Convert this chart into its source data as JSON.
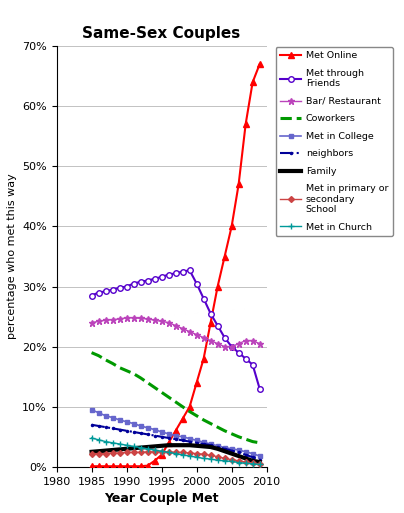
{
  "title": "Same-Sex Couples",
  "xlabel": "Year Couple Met",
  "ylabel": "percentage who met this way",
  "xlim": [
    1980,
    2010
  ],
  "ylim": [
    0,
    0.7
  ],
  "yticks": [
    0.0,
    0.1,
    0.2,
    0.3,
    0.4,
    0.5,
    0.6,
    0.7
  ],
  "ytick_labels": [
    "0%",
    "10%",
    "20%",
    "30%",
    "40%",
    "50%",
    "60%",
    "70%"
  ],
  "xticks": [
    1980,
    1985,
    1990,
    1995,
    2000,
    2005,
    2010
  ],
  "series": {
    "met_online": {
      "label": "Met Online",
      "color": "#ff0000",
      "marker": "^",
      "linestyle": "-",
      "markersize": 5,
      "markerfacecolor": "#ff0000",
      "linewidth": 1.5,
      "years": [
        1985,
        1986,
        1987,
        1988,
        1989,
        1990,
        1991,
        1992,
        1993,
        1994,
        1995,
        1996,
        1997,
        1998,
        1999,
        2000,
        2001,
        2002,
        2003,
        2004,
        2005,
        2006,
        2007,
        2008,
        2009
      ],
      "values": [
        0.001,
        0.001,
        0.001,
        0.001,
        0.001,
        0.001,
        0.001,
        0.001,
        0.002,
        0.01,
        0.02,
        0.04,
        0.06,
        0.08,
        0.1,
        0.14,
        0.18,
        0.24,
        0.3,
        0.35,
        0.4,
        0.47,
        0.57,
        0.64,
        0.67
      ]
    },
    "met_friends": {
      "label": "Met through\nFriends",
      "color": "#5500cc",
      "marker": "o",
      "linestyle": "-",
      "markersize": 4,
      "markerfacecolor": "white",
      "markeredgecolor": "#5500cc",
      "linewidth": 1.5,
      "years": [
        1985,
        1986,
        1987,
        1988,
        1989,
        1990,
        1991,
        1992,
        1993,
        1994,
        1995,
        1996,
        1997,
        1998,
        1999,
        2000,
        2001,
        2002,
        2003,
        2004,
        2005,
        2006,
        2007,
        2008,
        2009
      ],
      "values": [
        0.285,
        0.29,
        0.292,
        0.295,
        0.298,
        0.3,
        0.305,
        0.308,
        0.31,
        0.313,
        0.316,
        0.32,
        0.322,
        0.325,
        0.327,
        0.305,
        0.28,
        0.255,
        0.235,
        0.215,
        0.2,
        0.19,
        0.18,
        0.17,
        0.13
      ]
    },
    "bar_restaurant": {
      "label": "Bar/ Restaurant",
      "color": "#bb44bb",
      "marker": "*",
      "linestyle": "-",
      "markersize": 5,
      "markerfacecolor": "#bb44bb",
      "linewidth": 1.0,
      "years": [
        1985,
        1986,
        1987,
        1988,
        1989,
        1990,
        1991,
        1992,
        1993,
        1994,
        1995,
        1996,
        1997,
        1998,
        1999,
        2000,
        2001,
        2002,
        2003,
        2004,
        2005,
        2006,
        2007,
        2008,
        2009
      ],
      "values": [
        0.24,
        0.242,
        0.244,
        0.245,
        0.246,
        0.248,
        0.248,
        0.247,
        0.246,
        0.244,
        0.242,
        0.24,
        0.235,
        0.23,
        0.225,
        0.22,
        0.215,
        0.21,
        0.205,
        0.2,
        0.2,
        0.205,
        0.21,
        0.21,
        0.205
      ]
    },
    "coworkers": {
      "label": "Coworkers",
      "color": "#009900",
      "marker": "",
      "linestyle": "--",
      "markersize": 0,
      "linewidth": 2.2,
      "years": [
        1985,
        1986,
        1987,
        1988,
        1989,
        1990,
        1991,
        1992,
        1993,
        1994,
        1995,
        1996,
        1997,
        1998,
        1999,
        2000,
        2001,
        2002,
        2003,
        2004,
        2005,
        2006,
        2007,
        2008,
        2009
      ],
      "values": [
        0.19,
        0.185,
        0.178,
        0.172,
        0.165,
        0.16,
        0.155,
        0.148,
        0.14,
        0.132,
        0.124,
        0.116,
        0.108,
        0.1,
        0.092,
        0.085,
        0.078,
        0.072,
        0.066,
        0.06,
        0.055,
        0.05,
        0.046,
        0.042,
        0.04
      ]
    },
    "met_college": {
      "label": "Met in College",
      "color": "#6666cc",
      "marker": "s",
      "linestyle": "-",
      "markersize": 3,
      "markerfacecolor": "#6666cc",
      "linewidth": 1.2,
      "years": [
        1985,
        1986,
        1987,
        1988,
        1989,
        1990,
        1991,
        1992,
        1993,
        1994,
        1995,
        1996,
        1997,
        1998,
        1999,
        2000,
        2001,
        2002,
        2003,
        2004,
        2005,
        2006,
        2007,
        2008,
        2009
      ],
      "values": [
        0.095,
        0.09,
        0.085,
        0.082,
        0.078,
        0.075,
        0.072,
        0.068,
        0.065,
        0.062,
        0.058,
        0.055,
        0.052,
        0.05,
        0.047,
        0.044,
        0.041,
        0.038,
        0.035,
        0.032,
        0.03,
        0.028,
        0.025,
        0.022,
        0.018
      ]
    },
    "neighbors": {
      "label": "neighbors",
      "color": "#000099",
      "marker": ".",
      "linestyle": "-.",
      "markersize": 3,
      "markerfacecolor": "#000099",
      "linewidth": 1.5,
      "years": [
        1985,
        1986,
        1987,
        1988,
        1989,
        1990,
        1991,
        1992,
        1993,
        1994,
        1995,
        1996,
        1997,
        1998,
        1999,
        2000,
        2001,
        2002,
        2003,
        2004,
        2005,
        2006,
        2007,
        2008,
        2009
      ],
      "values": [
        0.07,
        0.068,
        0.066,
        0.064,
        0.062,
        0.06,
        0.058,
        0.056,
        0.054,
        0.052,
        0.05,
        0.048,
        0.046,
        0.044,
        0.042,
        0.04,
        0.038,
        0.036,
        0.033,
        0.03,
        0.027,
        0.024,
        0.02,
        0.016,
        0.012
      ]
    },
    "family": {
      "label": "Family",
      "color": "#000000",
      "marker": "",
      "linestyle": "-",
      "markersize": 0,
      "linewidth": 3.0,
      "years": [
        1985,
        1986,
        1987,
        1988,
        1989,
        1990,
        1991,
        1992,
        1993,
        1994,
        1995,
        1996,
        1997,
        1998,
        1999,
        2000,
        2001,
        2002,
        2003,
        2004,
        2005,
        2006,
        2007,
        2008,
        2009
      ],
      "values": [
        0.025,
        0.026,
        0.027,
        0.028,
        0.029,
        0.03,
        0.031,
        0.032,
        0.033,
        0.034,
        0.035,
        0.036,
        0.036,
        0.036,
        0.036,
        0.035,
        0.034,
        0.033,
        0.03,
        0.026,
        0.022,
        0.018,
        0.014,
        0.01,
        0.008
      ]
    },
    "primary_school": {
      "label": "Met in primary or\nsecondary\nSchool",
      "color": "#cc4444",
      "marker": "D",
      "linestyle": "-",
      "markersize": 3,
      "markerfacecolor": "#cc4444",
      "linewidth": 1.0,
      "years": [
        1985,
        1986,
        1987,
        1988,
        1989,
        1990,
        1991,
        1992,
        1993,
        1994,
        1995,
        1996,
        1997,
        1998,
        1999,
        2000,
        2001,
        2002,
        2003,
        2004,
        2005,
        2006,
        2007,
        2008,
        2009
      ],
      "values": [
        0.022,
        0.022,
        0.022,
        0.023,
        0.023,
        0.024,
        0.024,
        0.024,
        0.025,
        0.025,
        0.025,
        0.025,
        0.024,
        0.024,
        0.023,
        0.022,
        0.021,
        0.019,
        0.017,
        0.014,
        0.012,
        0.01,
        0.008,
        0.006,
        0.005
      ]
    },
    "church": {
      "label": "Met in Church",
      "color": "#009999",
      "marker": "+",
      "linestyle": "-",
      "markersize": 4,
      "markerfacecolor": "#009999",
      "linewidth": 1.0,
      "years": [
        1985,
        1986,
        1987,
        1988,
        1989,
        1990,
        1991,
        1992,
        1993,
        1994,
        1995,
        1996,
        1997,
        1998,
        1999,
        2000,
        2001,
        2002,
        2003,
        2004,
        2005,
        2006,
        2007,
        2008,
        2009
      ],
      "values": [
        0.048,
        0.045,
        0.042,
        0.04,
        0.038,
        0.036,
        0.034,
        0.032,
        0.03,
        0.028,
        0.026,
        0.024,
        0.022,
        0.02,
        0.018,
        0.016,
        0.014,
        0.013,
        0.011,
        0.01,
        0.009,
        0.007,
        0.006,
        0.005,
        0.004
      ]
    }
  },
  "legend_order": [
    "met_online",
    "met_friends",
    "bar_restaurant",
    "coworkers",
    "met_college",
    "neighbors",
    "family",
    "primary_school",
    "church"
  ],
  "background_color": "#ffffff",
  "figsize": [
    4.04,
    5.13
  ],
  "dpi": 100
}
